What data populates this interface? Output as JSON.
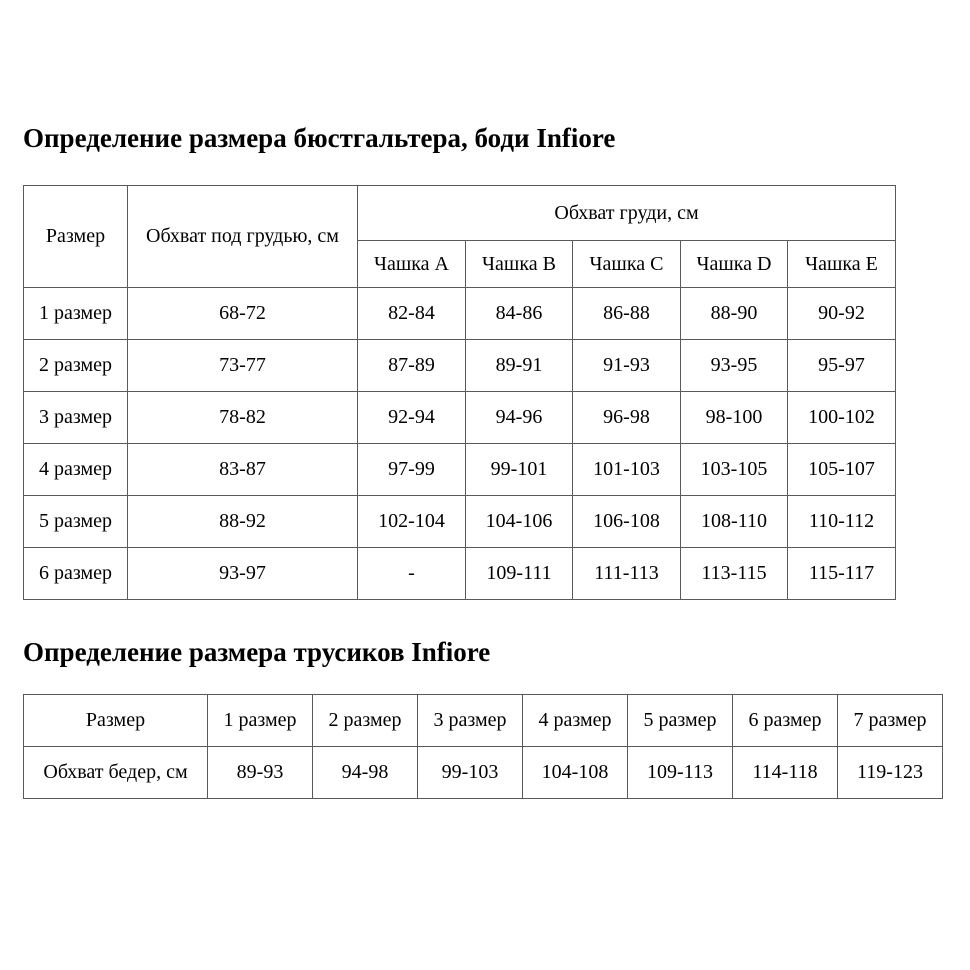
{
  "page": {
    "background_color": "#ffffff",
    "text_color": "#000000",
    "table_border_color": "#595959"
  },
  "bra_section": {
    "title": "Определение размера бюстгальтера, боди Infiore",
    "table": {
      "header": {
        "size_label": "Размер",
        "underbust_label": "Обхват под грудью, см",
        "bust_group_label": "Обхват груди, см",
        "cup_labels": [
          "Чашка A",
          "Чашка B",
          "Чашка C",
          "Чашка D",
          "Чашка E"
        ]
      },
      "rows": [
        {
          "size": "1 размер",
          "underbust": "68-72",
          "cups": [
            "82-84",
            "84-86",
            "86-88",
            "88-90",
            "90-92"
          ]
        },
        {
          "size": "2 размер",
          "underbust": "73-77",
          "cups": [
            "87-89",
            "89-91",
            "91-93",
            "93-95",
            "95-97"
          ]
        },
        {
          "size": "3 размер",
          "underbust": "78-82",
          "cups": [
            "92-94",
            "94-96",
            "96-98",
            "98-100",
            "100-102"
          ]
        },
        {
          "size": "4 размер",
          "underbust": "83-87",
          "cups": [
            "97-99",
            "99-101",
            "101-103",
            "103-105",
            "105-107"
          ]
        },
        {
          "size": "5 размер",
          "underbust": "88-92",
          "cups": [
            "102-104",
            "104-106",
            "106-108",
            "108-110",
            "110-112"
          ]
        },
        {
          "size": "6 размер",
          "underbust": "93-97",
          "cups": [
            "-",
            "109-111",
            "111-113",
            "113-115",
            "115-117"
          ]
        }
      ]
    }
  },
  "panties_section": {
    "title": "Определение размера трусиков Infiore",
    "table": {
      "size_label": "Размер",
      "size_columns": [
        "1 размер",
        "2 размер",
        "3 размер",
        "4 размер",
        "5 размер",
        "6 размер",
        "7 размер"
      ],
      "row_label": "Обхват бедер, см",
      "values": [
        "89-93",
        "94-98",
        "99-103",
        "104-108",
        "109-113",
        "114-118",
        "119-123"
      ]
    }
  }
}
